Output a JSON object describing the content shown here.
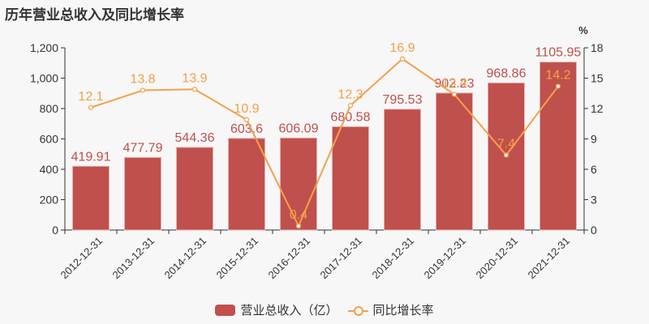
{
  "title": "历年营业总收入及同比增长率",
  "chart_data": {
    "type": "bar+line",
    "title": "历年营业总收入及同比增长率",
    "categories": [
      "2012-12-31",
      "2013-12-31",
      "2014-12-31",
      "2015-12-31",
      "2016-12-31",
      "2017-12-31",
      "2018-12-31",
      "2019-12-31",
      "2020-12-31",
      "2021-12-31"
    ],
    "series": [
      {
        "name": "营业总收入（亿）",
        "type": "bar",
        "axis": "left",
        "color": "#c0504d",
        "values": [
          419.91,
          477.79,
          544.36,
          603.6,
          606.09,
          680.58,
          795.53,
          902.23,
          968.86,
          1105.95
        ],
        "labels": [
          "419.91",
          "477.79",
          "544.36",
          "603.6",
          "606.09",
          "680.58",
          "795.53",
          "902.23",
          "968.86",
          "1105.95"
        ]
      },
      {
        "name": "同比增长率",
        "type": "line",
        "axis": "right",
        "color": "#f4a04b",
        "values": [
          12.1,
          13.8,
          13.9,
          10.9,
          0.4,
          12.3,
          16.9,
          13.4,
          7.4,
          14.2
        ],
        "labels": [
          "12.1",
          "13.8",
          "13.9",
          "10.9",
          "0.4",
          "12.3",
          "16.9",
          "13.4",
          "7.4",
          "14.2"
        ]
      }
    ],
    "left_axis": {
      "min": 0,
      "max": 1200,
      "ticks": [
        "0",
        "200",
        "400",
        "600",
        "800",
        "1,000",
        "1,200"
      ]
    },
    "right_axis": {
      "min": 0,
      "max": 18,
      "unit": "%",
      "ticks": [
        "0",
        "3",
        "6",
        "9",
        "12",
        "15",
        "18"
      ]
    },
    "xlabel": "",
    "ylabel": "",
    "grid": false,
    "legend_position": "bottom"
  },
  "legend": {
    "bar_label": "营业总收入（亿）",
    "line_label": "同比增长率"
  }
}
